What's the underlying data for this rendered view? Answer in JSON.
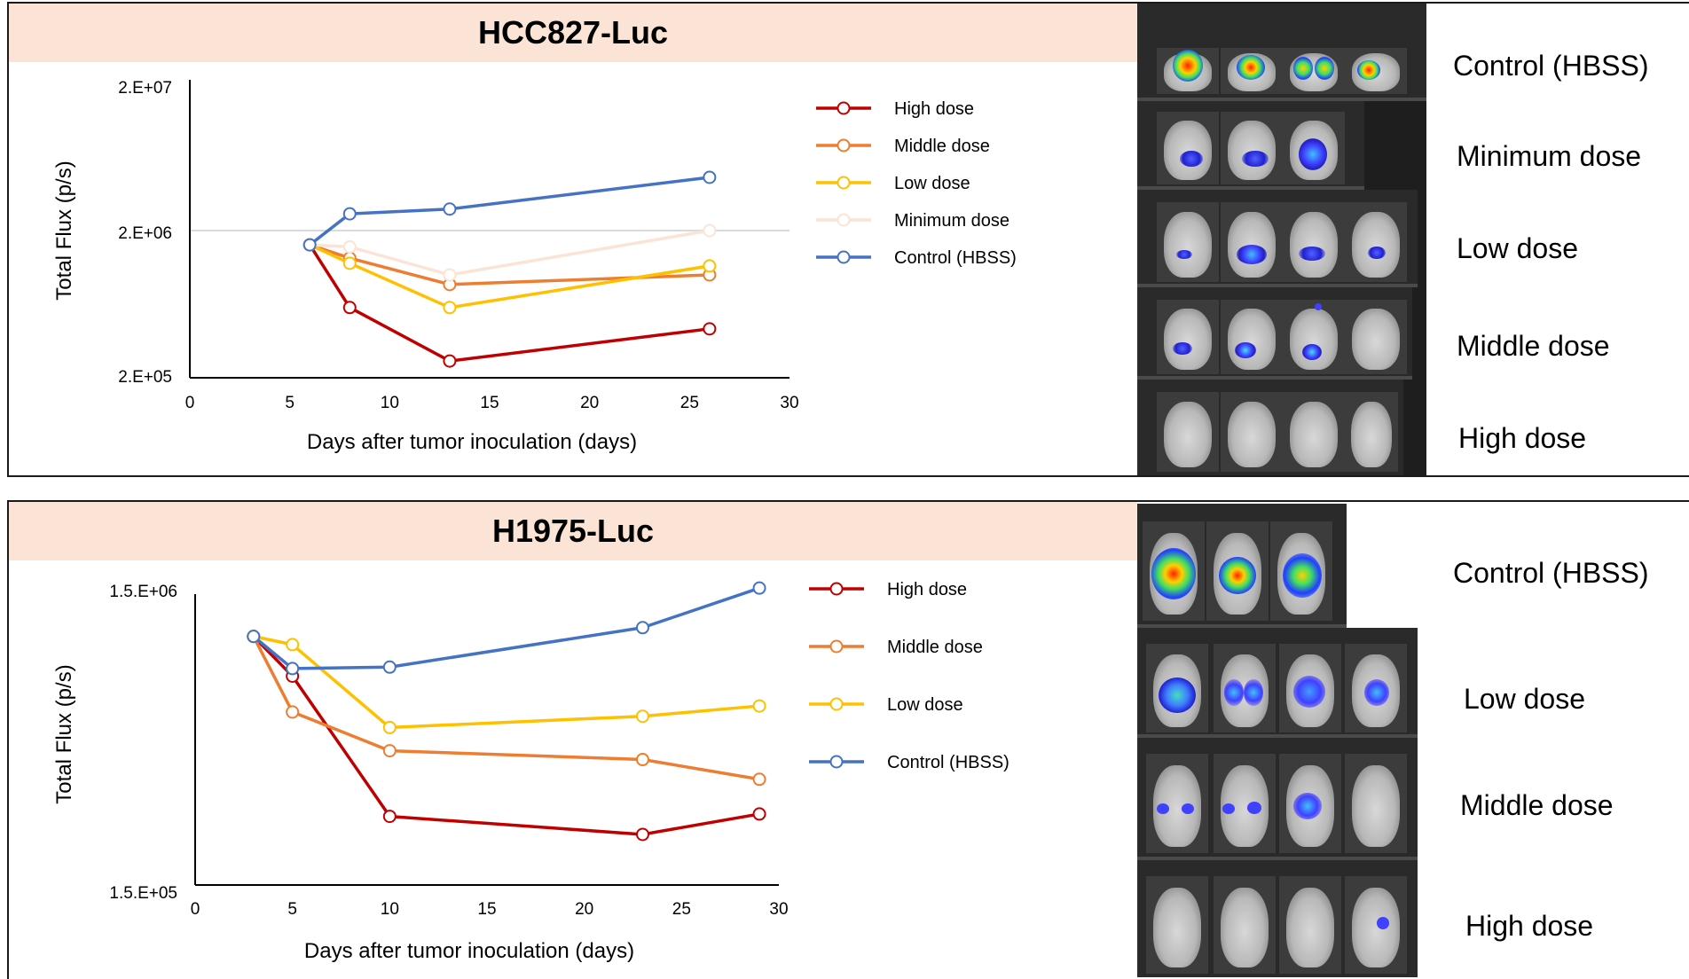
{
  "colors": {
    "high": "#c00000",
    "middle": "#ed7d31",
    "low": "#ffc000",
    "minimum": "#fbe4d5",
    "control": "#4472c4"
  },
  "chart_data": [
    {
      "type": "line",
      "title": "HCC827-Luc",
      "xlabel": "Days after tumor inoculation (days)",
      "ylabel": "Total Flux (p/s)",
      "y_scale": "log",
      "xlim": [
        0,
        30
      ],
      "ylim": [
        200000,
        20000000
      ],
      "x_ticks": [
        "0",
        "5",
        "10",
        "15",
        "20",
        "25",
        "30"
      ],
      "y_ticks": [
        "2.E+07",
        "2.E+06",
        "2.E+05"
      ],
      "legend_position": "right",
      "series": [
        {
          "name": "High dose",
          "color": "#c00000",
          "x": [
            6,
            8,
            13,
            26
          ],
          "y": [
            1600000,
            600000,
            260000,
            430000
          ]
        },
        {
          "name": "Middle dose",
          "color": "#ed7d31",
          "x": [
            6,
            8,
            13,
            26
          ],
          "y": [
            1600000,
            1300000,
            860000,
            1000000
          ]
        },
        {
          "name": "Low dose",
          "color": "#ffc000",
          "x": [
            6,
            8,
            13,
            26
          ],
          "y": [
            1600000,
            1200000,
            600000,
            1150000
          ]
        },
        {
          "name": "Minimum dose",
          "color": "#fbe4d5",
          "x": [
            6,
            8,
            13,
            26
          ],
          "y": [
            1600000,
            1550000,
            1000000,
            2000000
          ]
        },
        {
          "name": "Control (HBSS)",
          "color": "#4472c4",
          "x": [
            6,
            8,
            13,
            26
          ],
          "y": [
            1600000,
            2600000,
            2800000,
            4600000
          ]
        }
      ]
    },
    {
      "type": "line",
      "title": "H1975-Luc",
      "xlabel": "Days after tumor inoculation (days)",
      "ylabel": "Total Flux (p/s)",
      "y_scale": "log",
      "xlim": [
        0,
        30
      ],
      "ylim": [
        150000,
        1500000
      ],
      "x_ticks": [
        "0",
        "5",
        "10",
        "15",
        "20",
        "25",
        "30"
      ],
      "y_ticks": [
        "1.5.E+06",
        "1.5.E+05"
      ],
      "legend_position": "right",
      "series": [
        {
          "name": "High dose",
          "color": "#c00000",
          "x": [
            3,
            5,
            10,
            23,
            29
          ],
          "y": [
            1100000,
            800000,
            260000,
            225000,
            265000
          ]
        },
        {
          "name": "Middle dose",
          "color": "#ed7d31",
          "x": [
            3,
            5,
            10,
            23,
            29
          ],
          "y": [
            1100000,
            600000,
            440000,
            410000,
            350000
          ]
        },
        {
          "name": "Low dose",
          "color": "#ffc000",
          "x": [
            3,
            5,
            10,
            23,
            29
          ],
          "y": [
            1100000,
            1030000,
            530000,
            580000,
            630000
          ]
        },
        {
          "name": "Control (HBSS)",
          "color": "#4472c4",
          "x": [
            3,
            5,
            10,
            23,
            29
          ],
          "y": [
            1100000,
            850000,
            860000,
            1180000,
            1620000
          ]
        }
      ]
    }
  ],
  "imaging": [
    {
      "rows": [
        "Control (HBSS)",
        "Minimum dose",
        "Low dose",
        "Middle dose",
        "High dose"
      ]
    },
    {
      "rows": [
        "Control (HBSS)",
        "Low dose",
        "Middle dose",
        "High dose"
      ]
    }
  ]
}
